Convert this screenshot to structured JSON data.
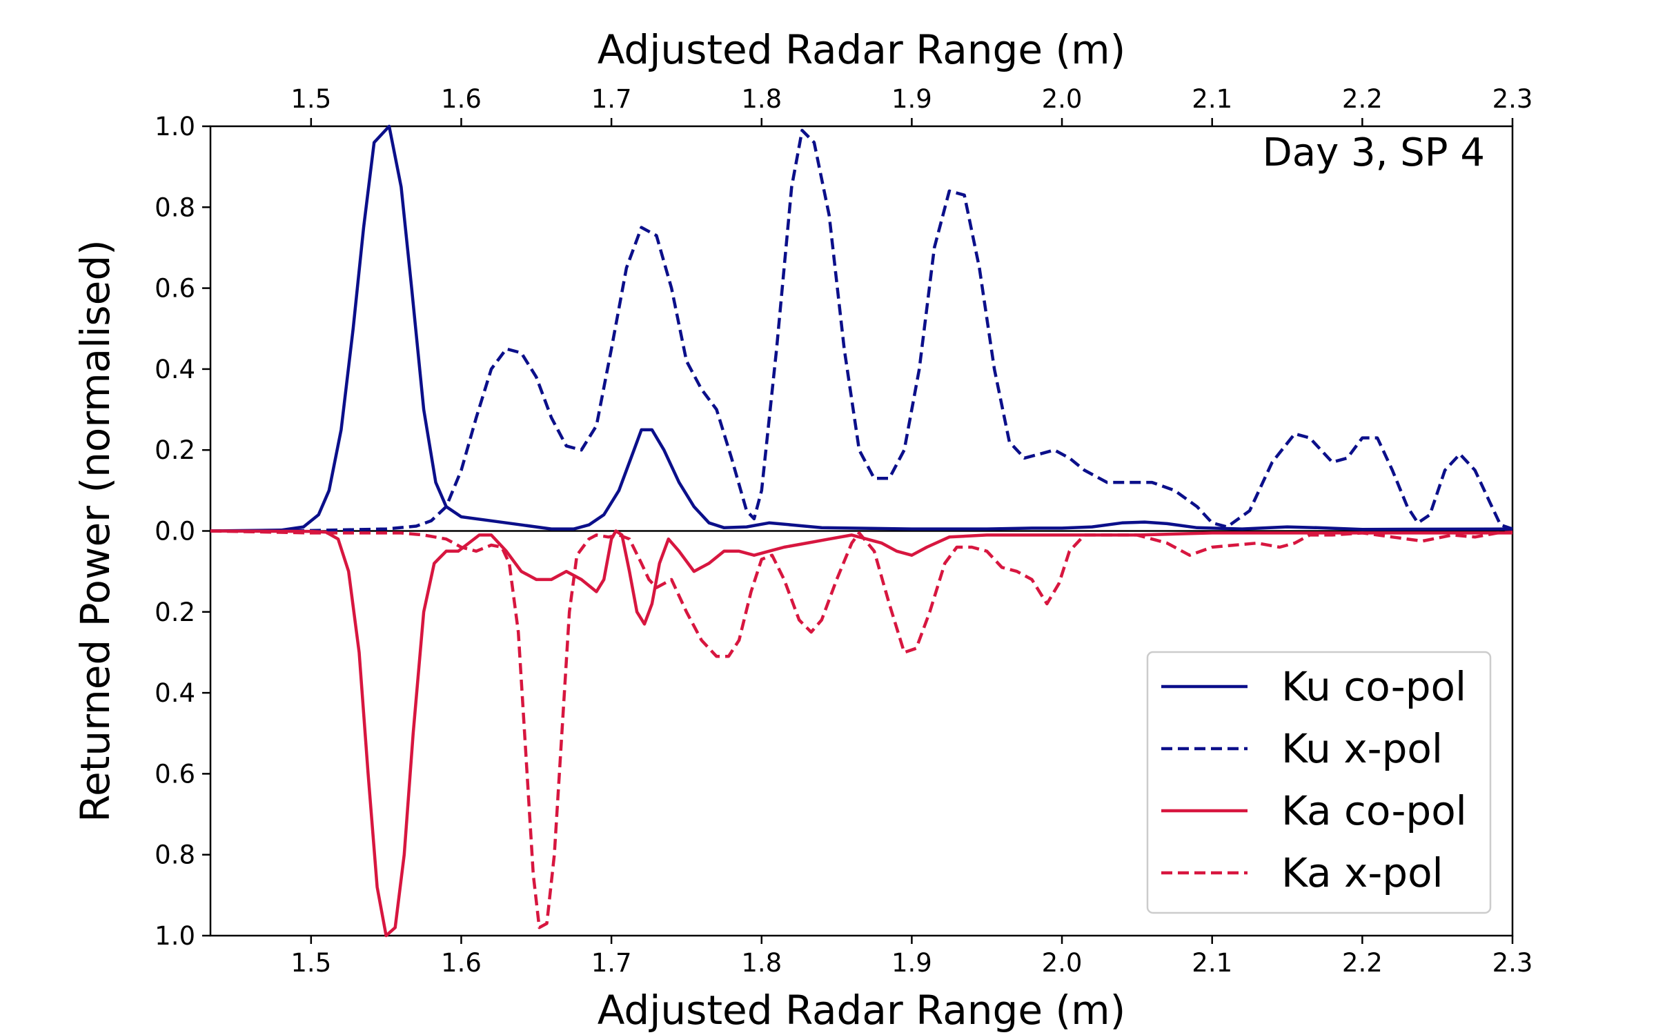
{
  "chart_data": {
    "type": "line",
    "title": "",
    "annotation": "Day 3, SP 4",
    "xlabel_top": "Adjusted Radar Range (m)",
    "xlabel_bottom": "Adjusted Radar Range (m)",
    "ylabel": "Returned Power (normalised)",
    "xlim": [
      1.433,
      2.3
    ],
    "ylim": [
      -1.0,
      1.0
    ],
    "x_ticks": [
      1.5,
      1.6,
      1.7,
      1.8,
      1.9,
      2.0,
      2.1,
      2.2,
      2.3
    ],
    "x_tick_labels": [
      "1.5",
      "1.6",
      "1.7",
      "1.8",
      "1.9",
      "2.0",
      "2.1",
      "2.2",
      "2.3"
    ],
    "y_ticks": [
      1.0,
      0.8,
      0.6,
      0.4,
      0.2,
      0.0,
      -0.2,
      -0.4,
      -0.6,
      -0.8,
      -1.0
    ],
    "y_tick_labels": [
      "1.0",
      "0.8",
      "0.6",
      "0.4",
      "0.2",
      "0.0",
      "0.2",
      "0.4",
      "0.6",
      "0.8",
      "1.0"
    ],
    "grid": false,
    "legend_position": "bottom-right",
    "series": [
      {
        "name": "Ku co-pol",
        "color": "#0b0f8a",
        "style": "solid",
        "points": [
          [
            1.433,
            0.0
          ],
          [
            1.48,
            0.002
          ],
          [
            1.495,
            0.01
          ],
          [
            1.505,
            0.04
          ],
          [
            1.512,
            0.1
          ],
          [
            1.52,
            0.25
          ],
          [
            1.528,
            0.5
          ],
          [
            1.535,
            0.75
          ],
          [
            1.542,
            0.96
          ],
          [
            1.552,
            1.0
          ],
          [
            1.56,
            0.85
          ],
          [
            1.567,
            0.6
          ],
          [
            1.575,
            0.3
          ],
          [
            1.583,
            0.12
          ],
          [
            1.59,
            0.06
          ],
          [
            1.6,
            0.035
          ],
          [
            1.62,
            0.025
          ],
          [
            1.64,
            0.015
          ],
          [
            1.66,
            0.005
          ],
          [
            1.675,
            0.005
          ],
          [
            1.685,
            0.015
          ],
          [
            1.695,
            0.04
          ],
          [
            1.705,
            0.1
          ],
          [
            1.715,
            0.2
          ],
          [
            1.72,
            0.25
          ],
          [
            1.727,
            0.25
          ],
          [
            1.735,
            0.2
          ],
          [
            1.745,
            0.12
          ],
          [
            1.755,
            0.06
          ],
          [
            1.765,
            0.02
          ],
          [
            1.775,
            0.008
          ],
          [
            1.79,
            0.01
          ],
          [
            1.805,
            0.02
          ],
          [
            1.82,
            0.015
          ],
          [
            1.84,
            0.008
          ],
          [
            1.9,
            0.005
          ],
          [
            1.95,
            0.005
          ],
          [
            1.98,
            0.007
          ],
          [
            2.0,
            0.007
          ],
          [
            2.02,
            0.01
          ],
          [
            2.04,
            0.02
          ],
          [
            2.055,
            0.022
          ],
          [
            2.07,
            0.018
          ],
          [
            2.09,
            0.008
          ],
          [
            2.12,
            0.005
          ],
          [
            2.15,
            0.01
          ],
          [
            2.17,
            0.008
          ],
          [
            2.2,
            0.004
          ],
          [
            2.3,
            0.005
          ]
        ]
      },
      {
        "name": "Ku x-pol",
        "color": "#0b0f8a",
        "style": "dashed",
        "points": [
          [
            1.433,
            0.0
          ],
          [
            1.5,
            0.001
          ],
          [
            1.55,
            0.005
          ],
          [
            1.57,
            0.012
          ],
          [
            1.58,
            0.025
          ],
          [
            1.59,
            0.06
          ],
          [
            1.6,
            0.15
          ],
          [
            1.61,
            0.28
          ],
          [
            1.62,
            0.4
          ],
          [
            1.63,
            0.45
          ],
          [
            1.64,
            0.44
          ],
          [
            1.65,
            0.38
          ],
          [
            1.66,
            0.28
          ],
          [
            1.67,
            0.21
          ],
          [
            1.68,
            0.2
          ],
          [
            1.69,
            0.26
          ],
          [
            1.7,
            0.45
          ],
          [
            1.71,
            0.65
          ],
          [
            1.72,
            0.75
          ],
          [
            1.73,
            0.73
          ],
          [
            1.74,
            0.6
          ],
          [
            1.75,
            0.42
          ],
          [
            1.76,
            0.35
          ],
          [
            1.77,
            0.3
          ],
          [
            1.78,
            0.18
          ],
          [
            1.79,
            0.05
          ],
          [
            1.795,
            0.03
          ],
          [
            1.8,
            0.1
          ],
          [
            1.81,
            0.45
          ],
          [
            1.82,
            0.85
          ],
          [
            1.827,
            0.99
          ],
          [
            1.835,
            0.96
          ],
          [
            1.845,
            0.78
          ],
          [
            1.855,
            0.45
          ],
          [
            1.865,
            0.2
          ],
          [
            1.875,
            0.13
          ],
          [
            1.885,
            0.13
          ],
          [
            1.895,
            0.2
          ],
          [
            1.905,
            0.4
          ],
          [
            1.915,
            0.7
          ],
          [
            1.925,
            0.84
          ],
          [
            1.935,
            0.83
          ],
          [
            1.945,
            0.65
          ],
          [
            1.955,
            0.4
          ],
          [
            1.965,
            0.22
          ],
          [
            1.975,
            0.18
          ],
          [
            1.985,
            0.19
          ],
          [
            1.995,
            0.2
          ],
          [
            2.005,
            0.18
          ],
          [
            2.015,
            0.15
          ],
          [
            2.03,
            0.12
          ],
          [
            2.05,
            0.12
          ],
          [
            2.06,
            0.12
          ],
          [
            2.075,
            0.1
          ],
          [
            2.09,
            0.06
          ],
          [
            2.1,
            0.02
          ],
          [
            2.11,
            0.01
          ],
          [
            2.125,
            0.05
          ],
          [
            2.14,
            0.17
          ],
          [
            2.155,
            0.24
          ],
          [
            2.165,
            0.23
          ],
          [
            2.18,
            0.17
          ],
          [
            2.19,
            0.18
          ],
          [
            2.2,
            0.23
          ],
          [
            2.21,
            0.23
          ],
          [
            2.22,
            0.15
          ],
          [
            2.23,
            0.06
          ],
          [
            2.237,
            0.02
          ],
          [
            2.245,
            0.04
          ],
          [
            2.255,
            0.15
          ],
          [
            2.265,
            0.19
          ],
          [
            2.275,
            0.15
          ],
          [
            2.285,
            0.07
          ],
          [
            2.292,
            0.015
          ],
          [
            2.3,
            0.005
          ]
        ]
      },
      {
        "name": "Ka co-pol",
        "color": "#d7163f",
        "style": "solid",
        "points": [
          [
            1.433,
            0.0
          ],
          [
            1.5,
            -0.001
          ],
          [
            1.51,
            -0.003
          ],
          [
            1.518,
            -0.02
          ],
          [
            1.525,
            -0.1
          ],
          [
            1.532,
            -0.3
          ],
          [
            1.538,
            -0.6
          ],
          [
            1.544,
            -0.88
          ],
          [
            1.55,
            -1.0
          ],
          [
            1.556,
            -0.98
          ],
          [
            1.562,
            -0.8
          ],
          [
            1.568,
            -0.5
          ],
          [
            1.575,
            -0.2
          ],
          [
            1.582,
            -0.08
          ],
          [
            1.59,
            -0.05
          ],
          [
            1.598,
            -0.05
          ],
          [
            1.605,
            -0.03
          ],
          [
            1.612,
            -0.01
          ],
          [
            1.62,
            -0.01
          ],
          [
            1.63,
            -0.05
          ],
          [
            1.64,
            -0.1
          ],
          [
            1.65,
            -0.12
          ],
          [
            1.66,
            -0.12
          ],
          [
            1.67,
            -0.1
          ],
          [
            1.68,
            -0.12
          ],
          [
            1.69,
            -0.15
          ],
          [
            1.695,
            -0.12
          ],
          [
            1.7,
            -0.02
          ],
          [
            1.703,
            0.0
          ],
          [
            1.707,
            -0.01
          ],
          [
            1.712,
            -0.1
          ],
          [
            1.717,
            -0.2
          ],
          [
            1.722,
            -0.23
          ],
          [
            1.727,
            -0.18
          ],
          [
            1.732,
            -0.08
          ],
          [
            1.738,
            -0.02
          ],
          [
            1.745,
            -0.05
          ],
          [
            1.755,
            -0.1
          ],
          [
            1.765,
            -0.08
          ],
          [
            1.775,
            -0.05
          ],
          [
            1.785,
            -0.05
          ],
          [
            1.795,
            -0.06
          ],
          [
            1.805,
            -0.05
          ],
          [
            1.815,
            -0.04
          ],
          [
            1.83,
            -0.03
          ],
          [
            1.845,
            -0.02
          ],
          [
            1.86,
            -0.01
          ],
          [
            1.87,
            -0.02
          ],
          [
            1.88,
            -0.03
          ],
          [
            1.89,
            -0.05
          ],
          [
            1.9,
            -0.06
          ],
          [
            1.91,
            -0.04
          ],
          [
            1.925,
            -0.015
          ],
          [
            1.95,
            -0.01
          ],
          [
            2.0,
            -0.01
          ],
          [
            2.05,
            -0.01
          ],
          [
            2.1,
            -0.005
          ],
          [
            2.2,
            -0.005
          ],
          [
            2.3,
            -0.005
          ]
        ]
      },
      {
        "name": "Ka x-pol",
        "color": "#d7163f",
        "style": "dashed",
        "points": [
          [
            1.433,
            0.0
          ],
          [
            1.5,
            -0.005
          ],
          [
            1.56,
            -0.005
          ],
          [
            1.575,
            -0.01
          ],
          [
            1.59,
            -0.02
          ],
          [
            1.6,
            -0.04
          ],
          [
            1.61,
            -0.05
          ],
          [
            1.62,
            -0.035
          ],
          [
            1.627,
            -0.04
          ],
          [
            1.632,
            -0.08
          ],
          [
            1.638,
            -0.25
          ],
          [
            1.643,
            -0.55
          ],
          [
            1.648,
            -0.85
          ],
          [
            1.652,
            -0.98
          ],
          [
            1.657,
            -0.97
          ],
          [
            1.662,
            -0.8
          ],
          [
            1.667,
            -0.5
          ],
          [
            1.672,
            -0.2
          ],
          [
            1.677,
            -0.06
          ],
          [
            1.685,
            -0.02
          ],
          [
            1.69,
            -0.01
          ],
          [
            1.698,
            -0.015
          ],
          [
            1.705,
            -0.01
          ],
          [
            1.712,
            -0.02
          ],
          [
            1.72,
            -0.08
          ],
          [
            1.725,
            -0.12
          ],
          [
            1.73,
            -0.14
          ],
          [
            1.74,
            -0.12
          ],
          [
            1.75,
            -0.2
          ],
          [
            1.76,
            -0.27
          ],
          [
            1.77,
            -0.31
          ],
          [
            1.778,
            -0.31
          ],
          [
            1.785,
            -0.27
          ],
          [
            1.793,
            -0.15
          ],
          [
            1.8,
            -0.07
          ],
          [
            1.807,
            -0.06
          ],
          [
            1.815,
            -0.12
          ],
          [
            1.825,
            -0.22
          ],
          [
            1.833,
            -0.25
          ],
          [
            1.84,
            -0.22
          ],
          [
            1.85,
            -0.12
          ],
          [
            1.86,
            -0.03
          ],
          [
            1.865,
            -0.005
          ],
          [
            1.875,
            -0.05
          ],
          [
            1.885,
            -0.18
          ],
          [
            1.895,
            -0.3
          ],
          [
            1.903,
            -0.29
          ],
          [
            1.912,
            -0.2
          ],
          [
            1.922,
            -0.08
          ],
          [
            1.93,
            -0.04
          ],
          [
            1.94,
            -0.04
          ],
          [
            1.95,
            -0.05
          ],
          [
            1.96,
            -0.09
          ],
          [
            1.97,
            -0.1
          ],
          [
            1.98,
            -0.12
          ],
          [
            1.99,
            -0.18
          ],
          [
            1.998,
            -0.13
          ],
          [
            2.005,
            -0.05
          ],
          [
            2.015,
            -0.01
          ],
          [
            2.03,
            -0.01
          ],
          [
            2.05,
            -0.01
          ],
          [
            2.07,
            -0.03
          ],
          [
            2.085,
            -0.06
          ],
          [
            2.1,
            -0.04
          ],
          [
            2.115,
            -0.035
          ],
          [
            2.13,
            -0.03
          ],
          [
            2.145,
            -0.04
          ],
          [
            2.155,
            -0.03
          ],
          [
            2.165,
            -0.01
          ],
          [
            2.18,
            -0.01
          ],
          [
            2.2,
            -0.005
          ],
          [
            2.22,
            -0.015
          ],
          [
            2.24,
            -0.025
          ],
          [
            2.26,
            -0.01
          ],
          [
            2.275,
            -0.015
          ],
          [
            2.29,
            -0.005
          ],
          [
            2.3,
            -0.003
          ]
        ]
      }
    ]
  }
}
